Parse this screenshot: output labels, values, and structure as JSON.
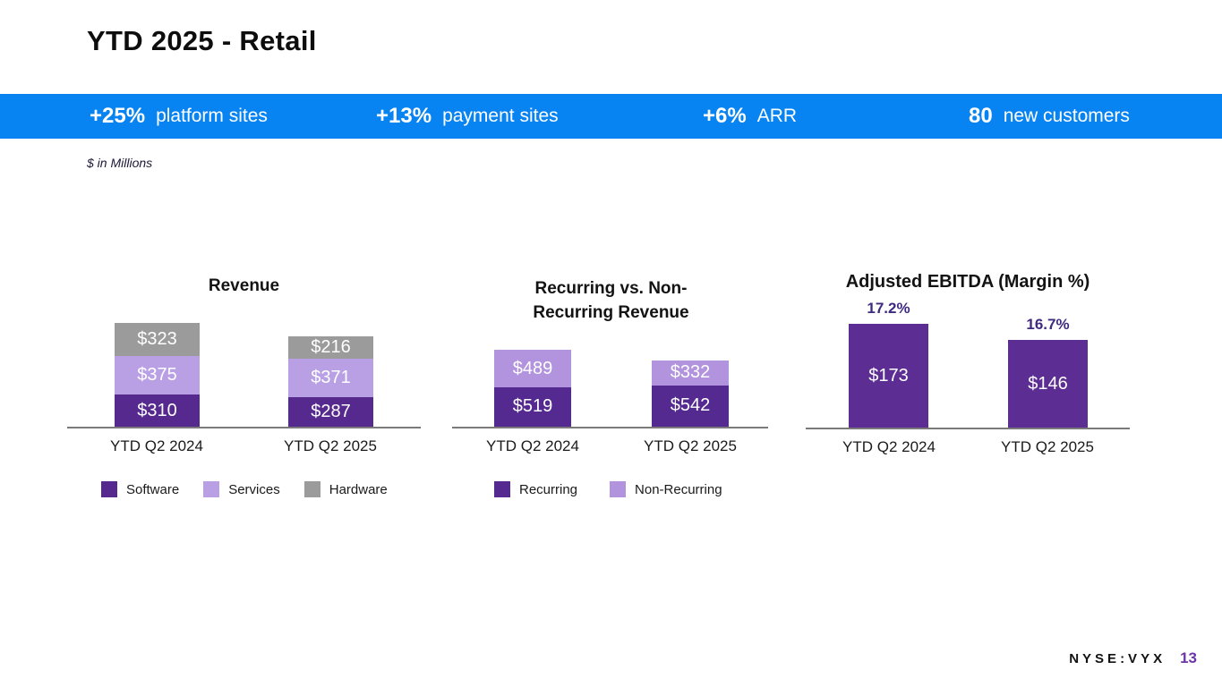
{
  "slide": {
    "title": "YTD 2025 - Retail",
    "note": "$ in Millions",
    "footer": {
      "ticker": "NYSE:VYX",
      "page": "13",
      "page_color": "#6d35a8"
    }
  },
  "banner": {
    "background": "#0884f2",
    "items": [
      {
        "value": "+25%",
        "label": "platform sites"
      },
      {
        "value": "+13%",
        "label": "payment sites"
      },
      {
        "value": "+6%",
        "label": "ARR"
      },
      {
        "value": "80",
        "label": "new customers"
      }
    ]
  },
  "chart_data": [
    {
      "type": "bar",
      "stacked": true,
      "title": "Revenue",
      "unit": "$ in Millions",
      "categories": [
        "YTD Q2 2024",
        "YTD Q2 2025"
      ],
      "series": [
        {
          "name": "Software",
          "color": "#56298e",
          "values": [
            310,
            287
          ],
          "labels": [
            "$310",
            "$287"
          ]
        },
        {
          "name": "Services",
          "color": "#b9a0e4",
          "values": [
            375,
            371
          ],
          "labels": [
            "$375",
            "$371"
          ]
        },
        {
          "name": "Hardware",
          "color": "#9b9b9b",
          "values": [
            323,
            216
          ],
          "labels": [
            "$323",
            "$216"
          ]
        }
      ],
      "legend_position": "bottom"
    },
    {
      "type": "bar",
      "stacked": true,
      "title": "Recurring vs. Non-Recurring Revenue",
      "title_lines": [
        "Recurring vs. Non-",
        "Recurring Revenue"
      ],
      "unit": "$ in Millions",
      "categories": [
        "YTD Q2 2024",
        "YTD Q2 2025"
      ],
      "series": [
        {
          "name": "Recurring",
          "color": "#542a90",
          "values": [
            519,
            542
          ],
          "labels": [
            "$519",
            "$542"
          ]
        },
        {
          "name": "Non-Recurring",
          "color": "#b293de",
          "values": [
            489,
            332
          ],
          "labels": [
            "$489",
            "$332"
          ]
        }
      ],
      "legend_position": "bottom"
    },
    {
      "type": "bar",
      "stacked": false,
      "title": "Adjusted EBITDA (Margin %)",
      "unit": "$ in Millions",
      "categories": [
        "YTD Q2 2024",
        "YTD Q2 2025"
      ],
      "values": [
        173,
        146
      ],
      "labels": [
        "$173",
        "$146"
      ],
      "margin_labels": [
        "17.2%",
        "16.7%"
      ],
      "color": "#5c2d92",
      "margin_color": "#3f2a80"
    }
  ]
}
